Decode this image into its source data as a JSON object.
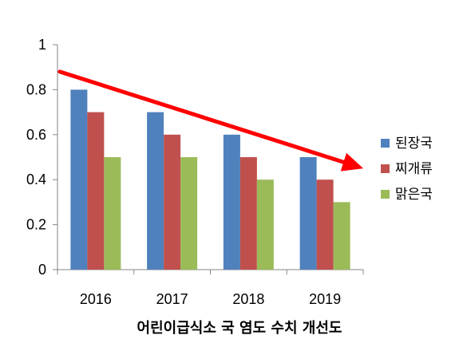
{
  "chart_data": {
    "type": "bar",
    "categories": [
      "2016",
      "2017",
      "2018",
      "2019"
    ],
    "series": [
      {
        "name": "된장국",
        "values": [
          0.8,
          0.7,
          0.6,
          0.5
        ],
        "color": "#4f81bd"
      },
      {
        "name": "찌개류",
        "values": [
          0.7,
          0.6,
          0.5,
          0.4
        ],
        "color": "#c0504d"
      },
      {
        "name": "맑은국",
        "values": [
          0.5,
          0.5,
          0.4,
          0.3
        ],
        "color": "#9bbb59"
      }
    ],
    "title": "",
    "xlabel": "어린이급식소 국 염도 수치 개선도",
    "ylabel": "",
    "ylim": [
      0,
      1
    ],
    "yticks": [
      "0",
      "0.2",
      "0.4",
      "0.6",
      "0.8",
      "1"
    ],
    "grid": false,
    "legend": "right",
    "annotation": {
      "type": "arrow",
      "color": "#ff0000",
      "from": [
        2016,
        0.88
      ],
      "to": [
        2019,
        0.45
      ]
    }
  }
}
